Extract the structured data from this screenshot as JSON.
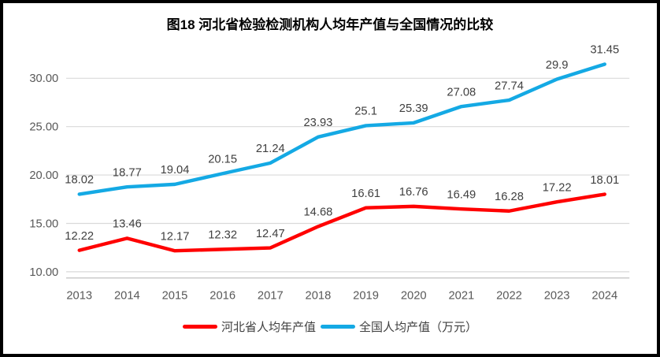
{
  "title": "图18 河北省检验检测机构人均年产值与全国情况的比较",
  "colors": {
    "hebei_line": "#FF0000",
    "national_line": "#14A9E4",
    "grid": "#D9D9D9",
    "axis_line": "#C0C0C0",
    "data_label_text": "#404040",
    "tick_text": "#595959",
    "title_text": "#000000",
    "border": "#000000",
    "background": "#FFFFFF"
  },
  "chart_data": {
    "type": "line",
    "title": "图18 河北省检验检测机构人均年产值与全国情况的比较",
    "categories": [
      "2013",
      "2014",
      "2015",
      "2016",
      "2017",
      "2018",
      "2019",
      "2020",
      "2021",
      "2022",
      "2023",
      "2024"
    ],
    "series": [
      {
        "id": "hebei",
        "name": "河北省人均年产值",
        "color": "#FF0000",
        "values": [
          12.22,
          13.46,
          12.17,
          12.32,
          12.47,
          14.68,
          16.61,
          16.76,
          16.49,
          16.28,
          17.22,
          18.01
        ]
      },
      {
        "id": "national",
        "name": "全国人均产值（万元）",
        "color": "#14A9E4",
        "values": [
          18.02,
          18.77,
          19.04,
          20.15,
          21.24,
          23.93,
          25.1,
          25.39,
          27.08,
          27.74,
          29.9,
          31.45
        ]
      }
    ],
    "yticks": [
      {
        "value": 10,
        "label": "10.00"
      },
      {
        "value": 15,
        "label": "15.00"
      },
      {
        "value": 20,
        "label": "20.00"
      },
      {
        "value": 25,
        "label": "25.00"
      },
      {
        "value": 30,
        "label": "30.00"
      }
    ],
    "ylim": [
      10,
      32.5
    ],
    "grid": true,
    "data_labels": true,
    "legend_position": "bottom"
  },
  "legend": {
    "items": [
      {
        "label": "河北省人均年产值"
      },
      {
        "label": "全国人均产值（万元）"
      }
    ]
  }
}
